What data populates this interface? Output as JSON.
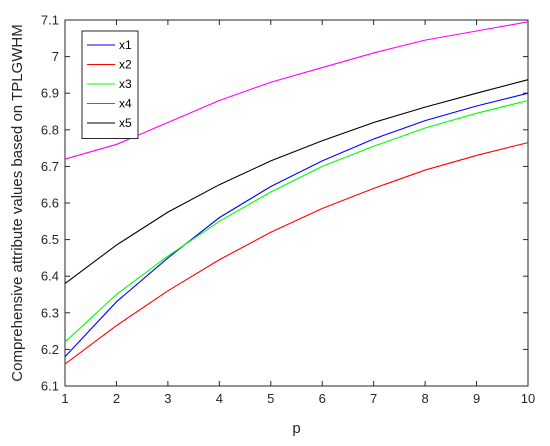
{
  "chart_data": {
    "type": "line",
    "title": "",
    "xlabel": "p",
    "ylabel": "Comprehensive attribute values based on TPLGWHM",
    "xlim": [
      1,
      10
    ],
    "ylim": [
      6.1,
      7.1
    ],
    "x": [
      1,
      2,
      3,
      4,
      5,
      6,
      7,
      8,
      9,
      10
    ],
    "x_ticks": [
      "1",
      "2",
      "3",
      "4",
      "5",
      "6",
      "7",
      "8",
      "9",
      "10"
    ],
    "y_ticks": [
      "6.1",
      "6.2",
      "6.3",
      "6.4",
      "6.5",
      "6.6",
      "6.7",
      "6.8",
      "6.9",
      "7",
      "7.1"
    ],
    "grid": false,
    "legend_position": "top-left",
    "series": [
      {
        "name": "x1",
        "color": "#0000ff",
        "values": [
          6.18,
          6.33,
          6.45,
          6.56,
          6.645,
          6.715,
          6.775,
          6.825,
          6.865,
          6.9
        ]
      },
      {
        "name": "x2",
        "color": "#ff0000",
        "values": [
          6.16,
          6.265,
          6.36,
          6.445,
          6.52,
          6.585,
          6.64,
          6.69,
          6.73,
          6.765
        ]
      },
      {
        "name": "x3",
        "color": "#00ff00",
        "values": [
          6.22,
          6.35,
          6.455,
          6.55,
          6.63,
          6.7,
          6.755,
          6.805,
          6.845,
          6.88
        ]
      },
      {
        "name": "x4",
        "color": "#ff00ff",
        "values": [
          6.72,
          6.76,
          6.82,
          6.88,
          6.93,
          6.97,
          7.01,
          7.045,
          7.07,
          7.095
        ]
      },
      {
        "name": "x5",
        "color": "#000000",
        "values": [
          6.38,
          6.485,
          6.575,
          6.65,
          6.715,
          6.77,
          6.82,
          6.862,
          6.9,
          6.937
        ]
      }
    ]
  }
}
